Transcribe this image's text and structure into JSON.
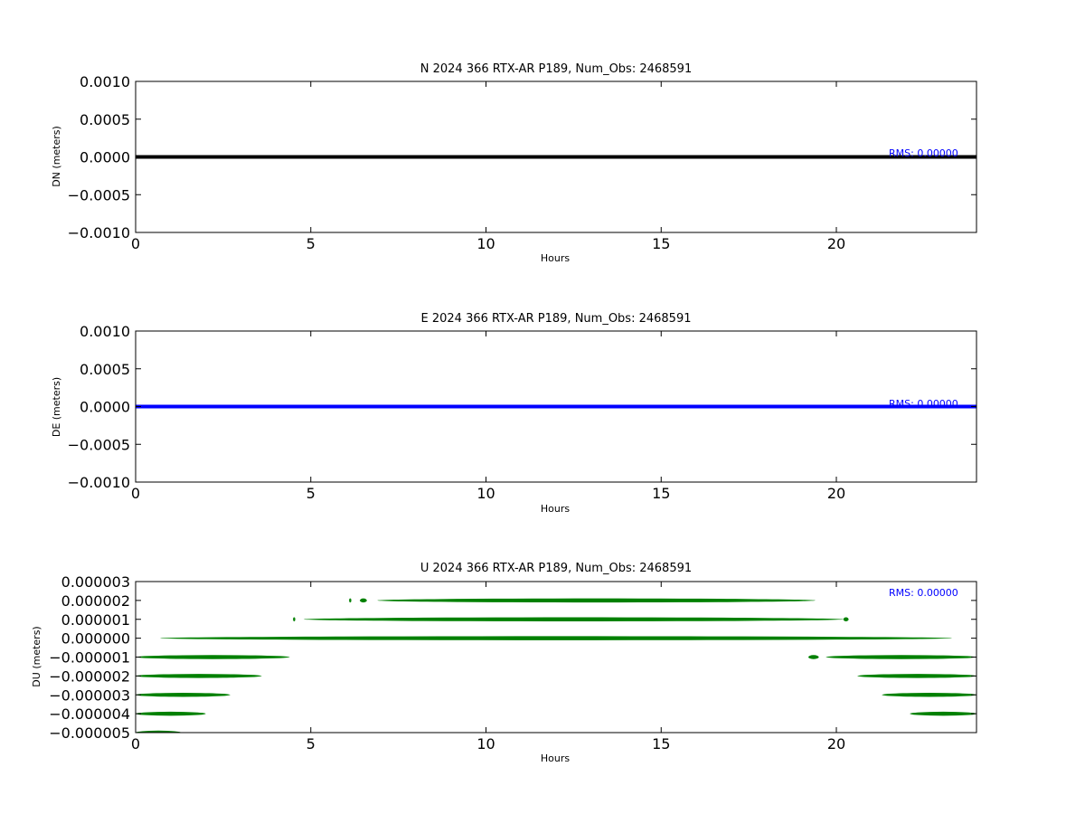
{
  "chart_data": [
    {
      "type": "line",
      "title": "N 2024 366 RTX-AR  P189, Num_Obs: 2468591",
      "xlabel": "Hours",
      "ylabel": "DN (meters)",
      "xlim": [
        0,
        24
      ],
      "ylim": [
        -0.001,
        0.001
      ],
      "x_ticks": [
        "0",
        "5",
        "10",
        "15",
        "20"
      ],
      "y_ticks": [
        "0.0010",
        "0.0005",
        "0.0000",
        "−0.0005",
        "−0.0010"
      ],
      "y_tick_values": [
        0.001,
        0.0005,
        0,
        -0.0005,
        -0.001
      ],
      "x_tick_values": [
        0,
        5,
        10,
        15,
        20
      ],
      "color": "#000000",
      "annotation": "RMS:  0.00000",
      "grid": false,
      "series": [
        {
          "values_segments": [
            {
              "x": [
                0,
                24
              ],
              "y": 0
            }
          ]
        }
      ]
    },
    {
      "type": "line",
      "title": "E 2024 366 RTX-AR  P189, Num_Obs: 2468591",
      "xlabel": "Hours",
      "ylabel": "DE (meters)",
      "xlim": [
        0,
        24
      ],
      "ylim": [
        -0.001,
        0.001
      ],
      "x_ticks": [
        "0",
        "5",
        "10",
        "15",
        "20"
      ],
      "y_ticks": [
        "0.0010",
        "0.0005",
        "0.0000",
        "−0.0005",
        "−0.0010"
      ],
      "y_tick_values": [
        0.001,
        0.0005,
        0,
        -0.0005,
        -0.001
      ],
      "x_tick_values": [
        0,
        5,
        10,
        15,
        20
      ],
      "color": "#0000ff",
      "annotation": "RMS:  0.00000",
      "grid": false,
      "series": [
        {
          "values_segments": [
            {
              "x": [
                0,
                24
              ],
              "y": 0
            }
          ]
        }
      ]
    },
    {
      "type": "scatter",
      "title": "U 2024 366 RTX-AR  P189, Num_Obs: 2468591",
      "xlabel": "Hours",
      "ylabel": "DU (meters)",
      "xlim": [
        0,
        24
      ],
      "ylim": [
        -5e-06,
        3e-06
      ],
      "x_ticks": [
        "0",
        "5",
        "10",
        "15",
        "20"
      ],
      "y_ticks": [
        "0.000003",
        "0.000002",
        "0.000001",
        "0.000000",
        "−0.000001",
        "−0.000002",
        "−0.000003",
        "−0.000004",
        "−0.000005"
      ],
      "y_tick_values": [
        3e-06,
        2e-06,
        1e-06,
        0,
        -1e-06,
        -2e-06,
        -3e-06,
        -4e-06,
        -5e-06
      ],
      "x_tick_values": [
        0,
        5,
        10,
        15,
        20
      ],
      "color": "#008000",
      "annotation": "RMS:  0.00000",
      "grid": false,
      "series": [
        {
          "values_segments": [
            {
              "x": [
                6.9,
                19.4
              ],
              "y": 2e-06
            },
            {
              "x": [
                6.1,
                6.15
              ],
              "y": 2e-06
            },
            {
              "x": [
                6.4,
                6.6
              ],
              "y": 2e-06
            },
            {
              "x": [
                4.8,
                20.2
              ],
              "y": 1e-06
            },
            {
              "x": [
                4.5,
                4.55
              ],
              "y": 1e-06
            },
            {
              "x": [
                20.2,
                20.35
              ],
              "y": 1e-06
            },
            {
              "x": [
                0.7,
                23.3
              ],
              "y": 0
            },
            {
              "x": [
                0,
                4.4
              ],
              "y": -1e-06
            },
            {
              "x": [
                19.2,
                19.5
              ],
              "y": -1e-06
            },
            {
              "x": [
                19.7,
                24
              ],
              "y": -1e-06
            },
            {
              "x": [
                0,
                3.6
              ],
              "y": -2e-06
            },
            {
              "x": [
                20.6,
                24
              ],
              "y": -2e-06
            },
            {
              "x": [
                0,
                2.7
              ],
              "y": -3e-06
            },
            {
              "x": [
                21.3,
                24
              ],
              "y": -3e-06
            },
            {
              "x": [
                0,
                2.0
              ],
              "y": -4e-06
            },
            {
              "x": [
                22.1,
                24
              ],
              "y": -4e-06
            },
            {
              "x": [
                0,
                1.3
              ],
              "y": -5e-06
            }
          ]
        }
      ]
    }
  ]
}
